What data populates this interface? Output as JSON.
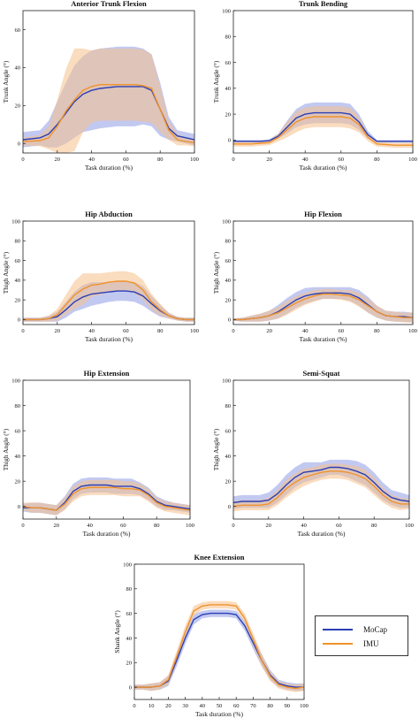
{
  "colors": {
    "mocap": "#2b3fb5",
    "imu": "#f0922c",
    "mocap_band": "#8f9ce6",
    "imu_band": "#f5c08a",
    "overlap_band": "#a87a8a"
  },
  "legend": {
    "items": [
      {
        "label": "MoCap",
        "color": "#2b3fb5"
      },
      {
        "label": "IMU",
        "color": "#f0922c"
      }
    ]
  },
  "chart_data": [
    {
      "type": "line",
      "title": "Anterior Trunk Flexion",
      "xlabel": "Task duration (%)",
      "ylabel": "Trunk Angle (°)",
      "xlim": [
        0,
        100
      ],
      "ylim": [
        -5,
        70
      ],
      "xticks": [
        0,
        20,
        40,
        60,
        80,
        100
      ],
      "yticks": [
        0,
        20,
        40,
        60
      ],
      "x": [
        0,
        10,
        15,
        20,
        25,
        30,
        35,
        40,
        45,
        50,
        55,
        60,
        65,
        70,
        75,
        80,
        85,
        90,
        95,
        100
      ],
      "series": [
        {
          "name": "MoCap",
          "values": [
            2,
            3,
            5,
            10,
            16,
            22,
            26,
            28,
            29,
            29.5,
            30,
            30,
            30,
            30,
            28,
            18,
            8,
            4,
            3,
            2
          ],
          "band": [
            4,
            4,
            7,
            12,
            16,
            19,
            20,
            21,
            21,
            21,
            21,
            21,
            21,
            20,
            19,
            14,
            6,
            3,
            3,
            3
          ]
        },
        {
          "name": "IMU",
          "values": [
            1,
            1.5,
            3,
            9,
            17,
            23,
            28,
            30,
            31,
            31,
            31,
            31,
            31,
            30.5,
            29,
            18,
            7,
            2,
            1,
            0.5
          ],
          "band": [
            2,
            3,
            6,
            14,
            22,
            27,
            22,
            19,
            19,
            19,
            19,
            19,
            19,
            19,
            18,
            12,
            5,
            3,
            2,
            2
          ]
        }
      ]
    },
    {
      "type": "line",
      "title": "Trunk Bending",
      "xlabel": "Task duration (%)",
      "ylabel": "Trunk Angle (°)",
      "xlim": [
        0,
        100
      ],
      "ylim": [
        -10,
        100
      ],
      "xticks": [
        0,
        20,
        40,
        60,
        80,
        100
      ],
      "yticks": [
        0,
        20,
        40,
        60,
        80,
        100
      ],
      "x": [
        0,
        10,
        15,
        20,
        25,
        30,
        35,
        40,
        45,
        50,
        55,
        60,
        65,
        70,
        75,
        80,
        85,
        90,
        95,
        100
      ],
      "series": [
        {
          "name": "MoCap",
          "values": [
            -1,
            -1,
            -1,
            -0.5,
            3,
            10,
            17,
            20,
            21,
            21,
            21,
            21,
            20,
            14,
            4,
            -1,
            -1,
            -1,
            -1,
            -1
          ],
          "band": [
            1,
            1,
            1,
            1,
            2,
            5,
            7,
            8,
            8,
            8,
            8,
            8,
            8,
            6,
            3,
            1,
            1,
            1,
            1,
            1
          ]
        },
        {
          "name": "IMU",
          "values": [
            -3,
            -3,
            -2.5,
            -2,
            2,
            8,
            14,
            17,
            18,
            18,
            18,
            18,
            17,
            12,
            2,
            -3,
            -3.5,
            -4,
            -4,
            -4
          ],
          "band": [
            2,
            2,
            2,
            2,
            3,
            6,
            8,
            8,
            8,
            8,
            8,
            8,
            8,
            6,
            3,
            2,
            2,
            2,
            2,
            2
          ]
        }
      ]
    },
    {
      "type": "line",
      "title": "Hip Abduction",
      "xlabel": "Task duration (%)",
      "ylabel": "Thigh Angle (°)",
      "xlim": [
        0,
        100
      ],
      "ylim": [
        -5,
        100
      ],
      "xticks": [
        0,
        20,
        40,
        60,
        80,
        100
      ],
      "yticks": [
        0,
        20,
        40,
        60,
        80,
        100
      ],
      "x": [
        0,
        10,
        15,
        20,
        25,
        30,
        35,
        40,
        45,
        50,
        55,
        60,
        65,
        70,
        75,
        80,
        85,
        90,
        95,
        100
      ],
      "series": [
        {
          "name": "MoCap",
          "values": [
            0,
            0,
            1,
            3,
            10,
            18,
            23,
            26,
            27,
            28,
            29,
            29,
            28,
            24,
            16,
            9,
            4,
            1,
            0,
            0
          ],
          "band": [
            2,
            2,
            3,
            5,
            8,
            10,
            12,
            12,
            11,
            10,
            10,
            10,
            10,
            10,
            8,
            6,
            3,
            2,
            2,
            2
          ]
        },
        {
          "name": "IMU",
          "values": [
            0,
            0,
            1,
            5,
            15,
            25,
            31,
            35,
            36,
            38,
            39,
            39,
            37,
            30,
            18,
            10,
            4,
            1,
            0,
            0
          ],
          "band": [
            2,
            2,
            3,
            6,
            10,
            14,
            16,
            12,
            11,
            10,
            10,
            10,
            10,
            10,
            8,
            6,
            3,
            2,
            2,
            2
          ]
        }
      ]
    },
    {
      "type": "line",
      "title": "Hip Flexion",
      "xlabel": "Task duration (%)",
      "ylabel": "Thigh Angle (°)",
      "xlim": [
        0,
        100
      ],
      "ylim": [
        -5,
        100
      ],
      "xticks": [
        0,
        20,
        40,
        60,
        80,
        100
      ],
      "yticks": [
        0,
        20,
        40,
        60,
        80,
        100
      ],
      "x": [
        0,
        5,
        10,
        15,
        20,
        25,
        30,
        35,
        40,
        45,
        50,
        55,
        60,
        65,
        70,
        75,
        80,
        85,
        90,
        95,
        100
      ],
      "series": [
        {
          "name": "MoCap",
          "values": [
            0,
            0,
            1,
            2,
            4,
            8,
            14,
            20,
            24,
            26,
            27,
            27,
            27,
            26,
            22,
            15,
            8,
            4,
            3,
            3,
            2
          ],
          "band": [
            1,
            2,
            3,
            4,
            5,
            7,
            8,
            8,
            8,
            7,
            6,
            6,
            6,
            7,
            8,
            8,
            6,
            5,
            5,
            5,
            5
          ]
        },
        {
          "name": "IMU",
          "values": [
            0,
            0,
            1,
            2,
            4,
            7,
            12,
            17,
            21,
            24,
            26,
            26,
            25,
            24,
            20,
            14,
            8,
            4,
            3,
            2,
            2
          ],
          "band": [
            1,
            2,
            3,
            4,
            5,
            6,
            7,
            7,
            6,
            6,
            5,
            5,
            5,
            6,
            7,
            7,
            6,
            5,
            5,
            5,
            5
          ]
        }
      ]
    },
    {
      "type": "line",
      "title": "Hip Extension",
      "xlabel": "Task duration (%)",
      "ylabel": "Thigh Angle (°)",
      "xlim": [
        0,
        100
      ],
      "ylim": [
        -10,
        100
      ],
      "xticks": [
        0,
        20,
        40,
        60,
        80,
        100
      ],
      "yticks": [
        0,
        20,
        40,
        60,
        80,
        100
      ],
      "x": [
        0,
        5,
        10,
        15,
        20,
        25,
        30,
        35,
        40,
        45,
        50,
        55,
        60,
        65,
        70,
        75,
        80,
        85,
        90,
        95,
        100
      ],
      "series": [
        {
          "name": "MoCap",
          "values": [
            -1,
            -1,
            -1,
            -2,
            -3,
            3,
            12,
            16,
            17,
            17,
            17,
            16,
            16,
            16,
            14,
            10,
            4,
            1,
            0,
            -1,
            -2
          ],
          "band": [
            3,
            4,
            4,
            4,
            4,
            5,
            6,
            6,
            6,
            6,
            6,
            6,
            6,
            6,
            5,
            5,
            4,
            4,
            3,
            3,
            3
          ]
        },
        {
          "name": "IMU",
          "values": [
            0,
            -1,
            -1,
            -2,
            -3,
            2,
            10,
            14,
            15,
            15,
            15,
            15,
            14,
            14,
            13,
            9,
            3,
            0,
            -1,
            -2,
            -3
          ],
          "band": [
            3,
            4,
            4,
            4,
            4,
            5,
            6,
            6,
            6,
            6,
            6,
            6,
            6,
            6,
            5,
            5,
            4,
            4,
            4,
            4,
            4
          ]
        }
      ]
    },
    {
      "type": "line",
      "title": "Semi-Squat",
      "xlabel": "Task duration (%)",
      "ylabel": "Thigh Angle (°)",
      "xlim": [
        0,
        100
      ],
      "ylim": [
        -10,
        100
      ],
      "xticks": [
        0,
        20,
        40,
        60,
        80,
        100
      ],
      "yticks": [
        0,
        20,
        40,
        60,
        80,
        100
      ],
      "x": [
        0,
        5,
        10,
        15,
        20,
        25,
        30,
        35,
        40,
        45,
        50,
        55,
        60,
        65,
        70,
        75,
        80,
        85,
        90,
        95,
        100
      ],
      "series": [
        {
          "name": "MoCap",
          "values": [
            3,
            4,
            4,
            4,
            5,
            10,
            17,
            23,
            27,
            28,
            29,
            31,
            31,
            30,
            28,
            25,
            19,
            12,
            7,
            5,
            4
          ],
          "band": [
            5,
            5,
            5,
            5,
            6,
            7,
            8,
            8,
            8,
            7,
            6,
            6,
            6,
            7,
            8,
            8,
            8,
            7,
            6,
            6,
            5
          ]
        },
        {
          "name": "IMU",
          "values": [
            0,
            1,
            1,
            1,
            2,
            7,
            14,
            19,
            23,
            25,
            27,
            28,
            28,
            27,
            25,
            22,
            16,
            9,
            4,
            2,
            2
          ],
          "band": [
            4,
            4,
            4,
            4,
            5,
            6,
            7,
            7,
            7,
            6,
            6,
            6,
            6,
            6,
            7,
            7,
            7,
            6,
            5,
            5,
            4
          ]
        }
      ]
    },
    {
      "type": "line",
      "title": "Knee Extension",
      "xlabel": "Task duration (%)",
      "ylabel": "Shank Angle (°)",
      "xlim": [
        0,
        100
      ],
      "ylim": [
        -10,
        100
      ],
      "xticks": [
        0,
        10,
        20,
        30,
        40,
        50,
        60,
        70,
        80,
        90,
        100
      ],
      "yticks": [
        0,
        20,
        40,
        60,
        80,
        100
      ],
      "x": [
        0,
        5,
        10,
        15,
        20,
        25,
        30,
        35,
        40,
        45,
        50,
        55,
        60,
        65,
        70,
        75,
        80,
        85,
        90,
        95,
        100
      ],
      "series": [
        {
          "name": "MoCap",
          "values": [
            0,
            0,
            0,
            1,
            5,
            22,
            40,
            55,
            59,
            60,
            60,
            60,
            59,
            50,
            36,
            22,
            10,
            3,
            1,
            0,
            0
          ],
          "band": [
            2,
            2,
            3,
            3,
            4,
            5,
            5,
            4,
            3,
            3,
            3,
            3,
            3,
            4,
            5,
            5,
            4,
            3,
            3,
            3,
            3
          ]
        },
        {
          "name": "IMU",
          "values": [
            0,
            0,
            0,
            1,
            6,
            25,
            45,
            62,
            66,
            67,
            67,
            67,
            66,
            56,
            39,
            22,
            9,
            2,
            0,
            -1,
            0
          ],
          "band": [
            2,
            2,
            3,
            3,
            4,
            5,
            5,
            4,
            3,
            3,
            3,
            3,
            3,
            4,
            5,
            5,
            4,
            3,
            3,
            3,
            3
          ]
        }
      ]
    }
  ]
}
